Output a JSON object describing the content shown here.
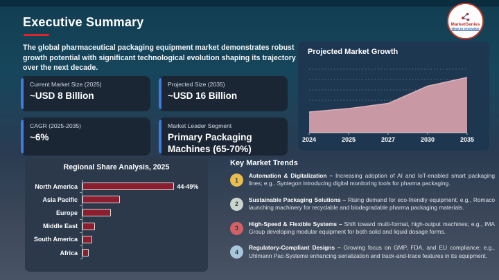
{
  "slide": {
    "title": "Executive Summary",
    "intro": "The global pharmaceutical packaging equipment market demonstrates robust growth potential with significant technological evolution shaping its trajectory over the next decade."
  },
  "logo": {
    "name": "MarketGenies",
    "tagline": "Ideas to Innovation"
  },
  "stat_cards": [
    {
      "label": "Current Market Size (2025)",
      "value": "~USD 8 Billion"
    },
    {
      "label": "Projected Size (2035)",
      "value": "~USD 16 Billion"
    },
    {
      "label": "CAGR (2025-2035)",
      "value": "~6%"
    },
    {
      "label": "Market Leader Segment",
      "value": "Primary Packaging Machines (65-70%)"
    }
  ],
  "growth_panel": {
    "title": "Projected Market Growth"
  },
  "regional_panel": {
    "title": "Regional Share Analysis, 2025"
  },
  "trends": {
    "heading": "Key Market Trends",
    "items": [
      {
        "num": "1",
        "badge_color": "#eabd4f",
        "title": "Automation & Digitalization –",
        "body": "Increasing adoption of AI and IoT-enabled smart packaging lines; e.g., Syntegon introducing digital monitoring tools for pharma packaging."
      },
      {
        "num": "2",
        "badge_color": "#ccd5cc",
        "title": "Sustainable Packaging Solutions –",
        "body": "Rising demand for eco-friendly equipment; e.g., Romaco launching machinery for recyclable and biodegradable pharma packaging materials."
      },
      {
        "num": "3",
        "badge_color": "#d26165",
        "title": "High-Speed & Flexible Systems –",
        "body": "Shift toward multi-format, high-output machines; e.g., IMA Group developing modular equipment for both solid and liquid dosage forms."
      },
      {
        "num": "4",
        "badge_color": "#a8c7dd",
        "title": "Regulatory-Compliant Designs –",
        "body": "Growing focus on GMP, FDA, and EU compliance; e.g., Uhlmann Pac-Systeme enhancing serialization and track-and-trace features in its equipment."
      }
    ]
  },
  "chart_data": [
    {
      "type": "area",
      "title": "Projected Market Growth",
      "x": [
        "2024",
        "2025",
        "2027",
        "2030",
        "2035"
      ],
      "values": [
        6,
        7,
        8.5,
        13.5,
        16
      ],
      "values_note": "USD Billion, estimated from area heights — chart shows no y-axis labels",
      "xlabel": "",
      "ylabel": "",
      "ylim": [
        0,
        20
      ],
      "grid": "dotted horizontal gridlines",
      "fill_color": "#c899a4",
      "edge_color": "#dcb2bb"
    },
    {
      "type": "bar",
      "orientation": "horizontal",
      "title": "Regional Share Analysis, 2025",
      "categories": [
        "North America",
        "Asia Pacific",
        "Europe",
        "Middle East",
        "South America",
        "Africa"
      ],
      "values": [
        46.5,
        19,
        14.5,
        6.5,
        5,
        3
      ],
      "values_note": "percent share; only North America labeled on chart, others estimated from bar lengths",
      "data_labels": [
        "44-49%",
        "",
        "",
        "",
        "",
        ""
      ],
      "bar_color": "#8c1f2f",
      "bar_outline": "#d9d9d9",
      "legend": "none"
    }
  ],
  "colors": {
    "accent_red": "#d7262c",
    "card_accent_blue": "#3d7ce0",
    "background_top": "#133e52",
    "background_bottom": "#485365",
    "panel_dark": "#1e3750",
    "panel_slate": "#2b394b"
  }
}
